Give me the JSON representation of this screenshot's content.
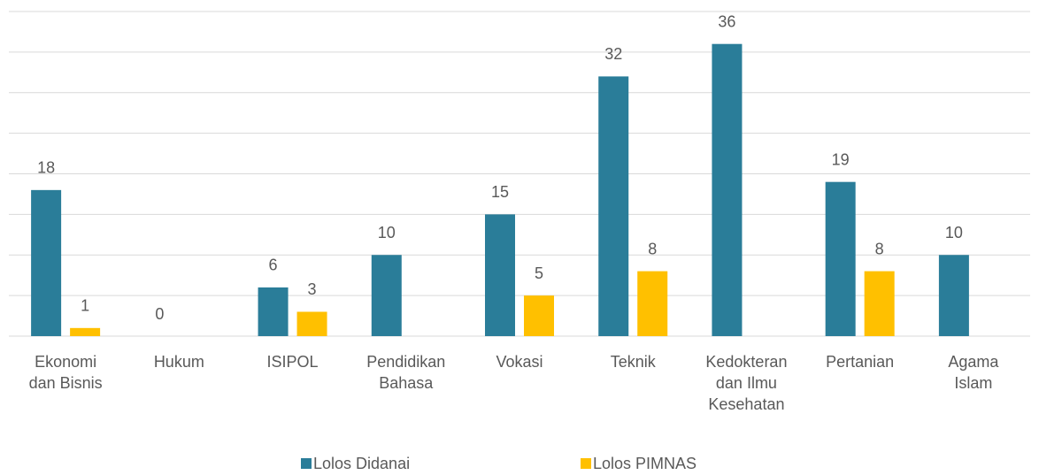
{
  "chart_data": {
    "type": "bar",
    "categories": [
      "Ekonomi dan Bisnis",
      "Hukum",
      "ISIPOL",
      "Pendidikan Bahasa",
      "Vokasi",
      "Teknik",
      "Kedokteran dan Ilmu Kesehatan",
      "Pertanian",
      "Agama Islam"
    ],
    "series": [
      {
        "name": "Lolos Didanai",
        "color": "#2a7d99",
        "values": [
          18,
          0,
          6,
          10,
          15,
          32,
          36,
          19,
          10
        ]
      },
      {
        "name": "Lolos PIMNAS",
        "color": "#ffc000",
        "values": [
          1,
          null,
          3,
          null,
          5,
          8,
          null,
          8,
          null
        ]
      }
    ],
    "ylim": [
      0,
      40
    ],
    "yticks": [
      0,
      5,
      10,
      15,
      20,
      25,
      30,
      35,
      40
    ],
    "grid": true,
    "legend": "bottom"
  }
}
